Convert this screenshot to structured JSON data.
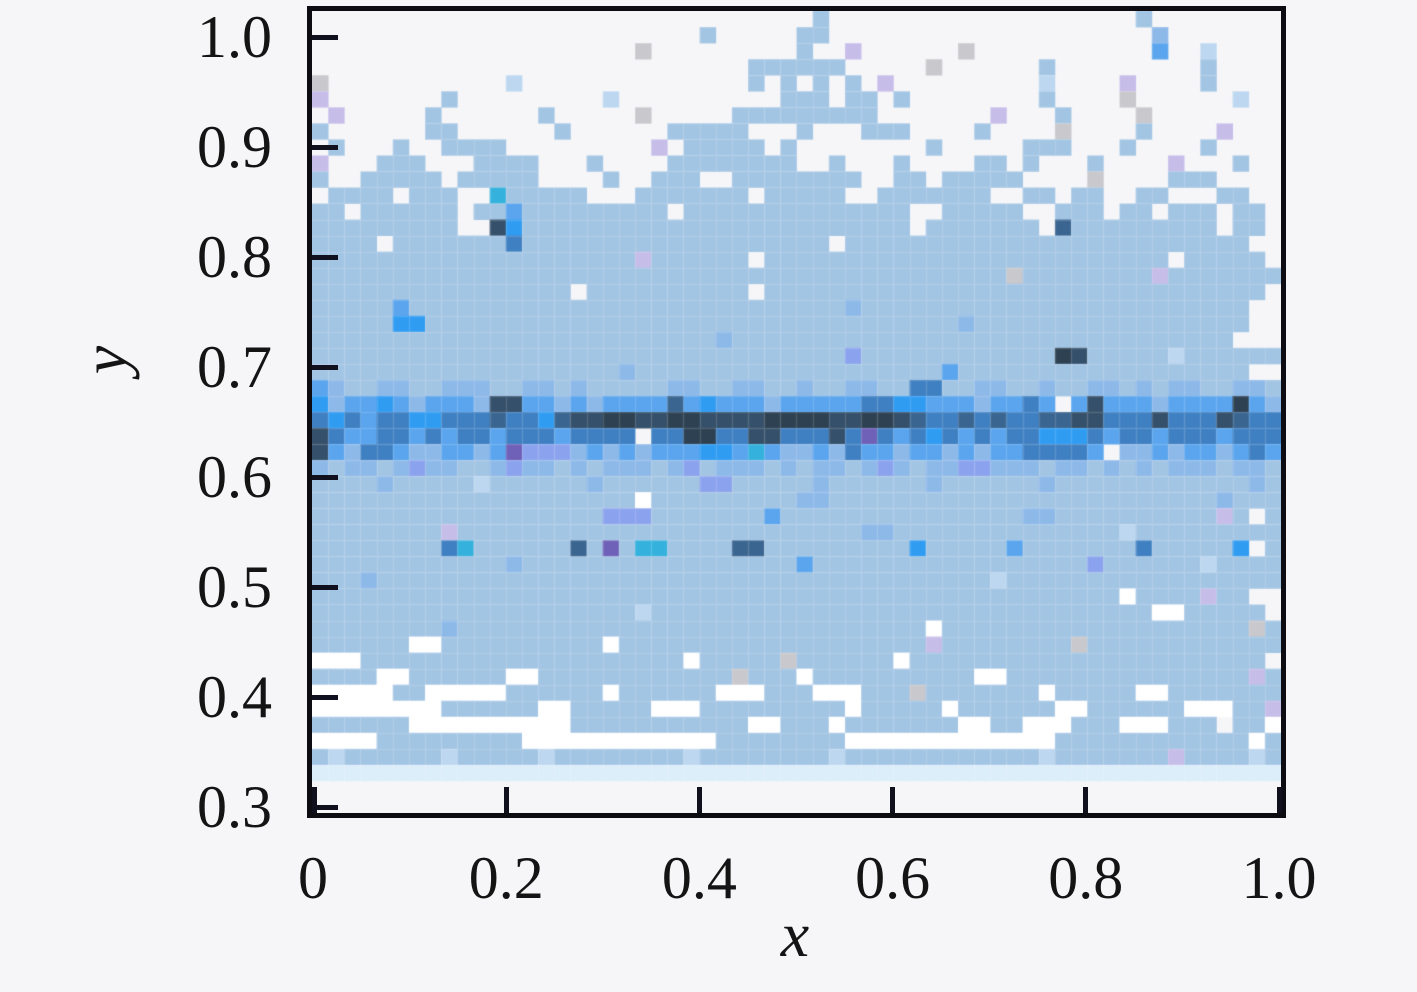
{
  "figure": {
    "background": "#f6f6f8",
    "spine_color": "#0c0c12",
    "tick_color": "#10101e",
    "text_color": "#141414"
  },
  "chart_data": {
    "type": "heatmap",
    "title": "",
    "xlabel": "x",
    "ylabel": "y",
    "xlim": [
      0,
      1.0
    ],
    "ylim": [
      0.295,
      1.025
    ],
    "x_ticks": [
      0,
      0.2,
      0.4,
      0.6,
      0.8,
      1.0
    ],
    "x_tick_labels": [
      "0",
      "0.2",
      "0.4",
      "0.6",
      "0.8",
      "1.0"
    ],
    "y_ticks": [
      1.0,
      0.9,
      0.8,
      0.7,
      0.6,
      0.5,
      0.4,
      0.3
    ],
    "y_tick_labels": [
      "1.0",
      "0.9",
      "0.8",
      "0.7",
      "0.6",
      "0.5",
      "0.4",
      "0.3"
    ],
    "grid_cols": 60,
    "grid_rows": 50,
    "legend": "none",
    "grid_mesh": "faint white lines between cells",
    "palette": {
      "1": "#c8c8cd",
      "2": "#c6bde9",
      "3": "#bdd7f0",
      "4": "#a3c5e4",
      "5": "#8db9e9",
      "6": "#8ba3ee",
      "7": "#5aa5ee",
      "8": "#2f9cf2",
      "9": "#3f80c2",
      "a": "#34b2dd",
      "b": "#6f60b8",
      "c": "#3a6590",
      "d": "#35506a",
      "e": "#2d4152",
      "f": "#ffffff",
      "g": "#dceefa"
    },
    "rows": [
      "...............................4...................4......",
      "........................4.....44....................5......",
      "....................1.........4..2......1...........7..3...",
      "...........................444444.....1......4.........4...",
      "1...........3..............4.4.4.4.2.........3....2....4...",
      "2.......4.........3..........444.44.4........4....1......3.",
      ".2.....4......4.....1.....444444444.......2...4....1.......",
      "4......44......4......44444...4...444....4....1....4....2..",
      ".4...4..4444.........2.44444.4........4.....444...4....4...",
      "2...444...4444...4....44444444..4...4....44.4...4....2...4.",
      "4..44444.44444....4..444..44444444..44.44444....1....444...",
      ".4444.444..a44444...4444444.44444..4444444..44.44..44...44.",
      "44.444444.447444444444.44444444444444..44444..444.44.444.44",
      "444444444..d8444444444444444444444444.4444444.c444444444.44",
      "4444.444444494444444444444444444.4444444444444444444444444.",
      "444444444444444444442444444.4444444444444444444444444.44444",
      "444444444444444444444444444444444444444444414444444424444444",
      "4444444444444444.4444444444.4444444444444444444444444444444",
      "4444474444444444444444444444444445444444444444444444444444",
      "4444488444444444444444444444444444444444544444444444444444",
      "444444444444444444444444454444444444444444444444444444444",
      "4444444444444444444444444444444446444444444444ed4444434444444",
      "4444444444444444444544444444444444444447444444444444444444",
      "754455445554455454444455445544544554499445544544554545544554",
      "85778757775dd775757777c78777577777998877757797 7d77757777e757",
      "98979988999c998cddeeddeeddddeeeeddeedc99c9c99ccdd999d999dc99",
      "d9779979799799979999 99ee99dd999d9b9798979799888979979997999d",
      "d75997557757b66657575777887a755759775775757799997 55757757975",
      "545545655445655454555456455545455456545566555455454545554554",
      "444454444434444445444444664444454444445444444544444444444454",
      "44444444444444444444f4444444445544444444444444444444444454444",
      "4444444444444444446664444444744444444444444455444444444424 44",
      "444444442444444444444444444444444455444444444444443444444444",
      "444444449a444444c4b4aa4444cc444444444844444744444449444448 44",
      "444444444444544444444444444444744444444444444444644444434444",
      "444544444444444444444444444444444444444444344444444444444444",
      "44444444444444444444444444444444444444444444444444f4444244",
      "4444444444444444444434444444444444444444444444444444ff44444",
      "44444444544444444444444444444444444444f444444444444444444414",
      "444444ff4444444444f444444444444444444424444444414444444444444",
      "fff44444444444444444444f444441444444f4444444444444444444444",
      "4444ff444444ff4444444444441444f4444444444ff44444444444444424",
      "fffff44fffff444444f444444fff444fff44414444444f44444ff4444444",
      "ffffffff444444ff44444fff444444444f44444f444444ff444444fff442",
      "444444ffffffffff44444444444ff444f4444444ff44fff444fff444 44f4",
      "ffff444444444ffffffffffff44444444fffffffffffff444444444444f4",
      "434444443444443444444443444444443444444444444344444442444434",
      "gggggggggggggggggggggggggggggggggggggggggggggggggggggggggggg",
      "............................................................",
      "............................................................"
    ]
  }
}
